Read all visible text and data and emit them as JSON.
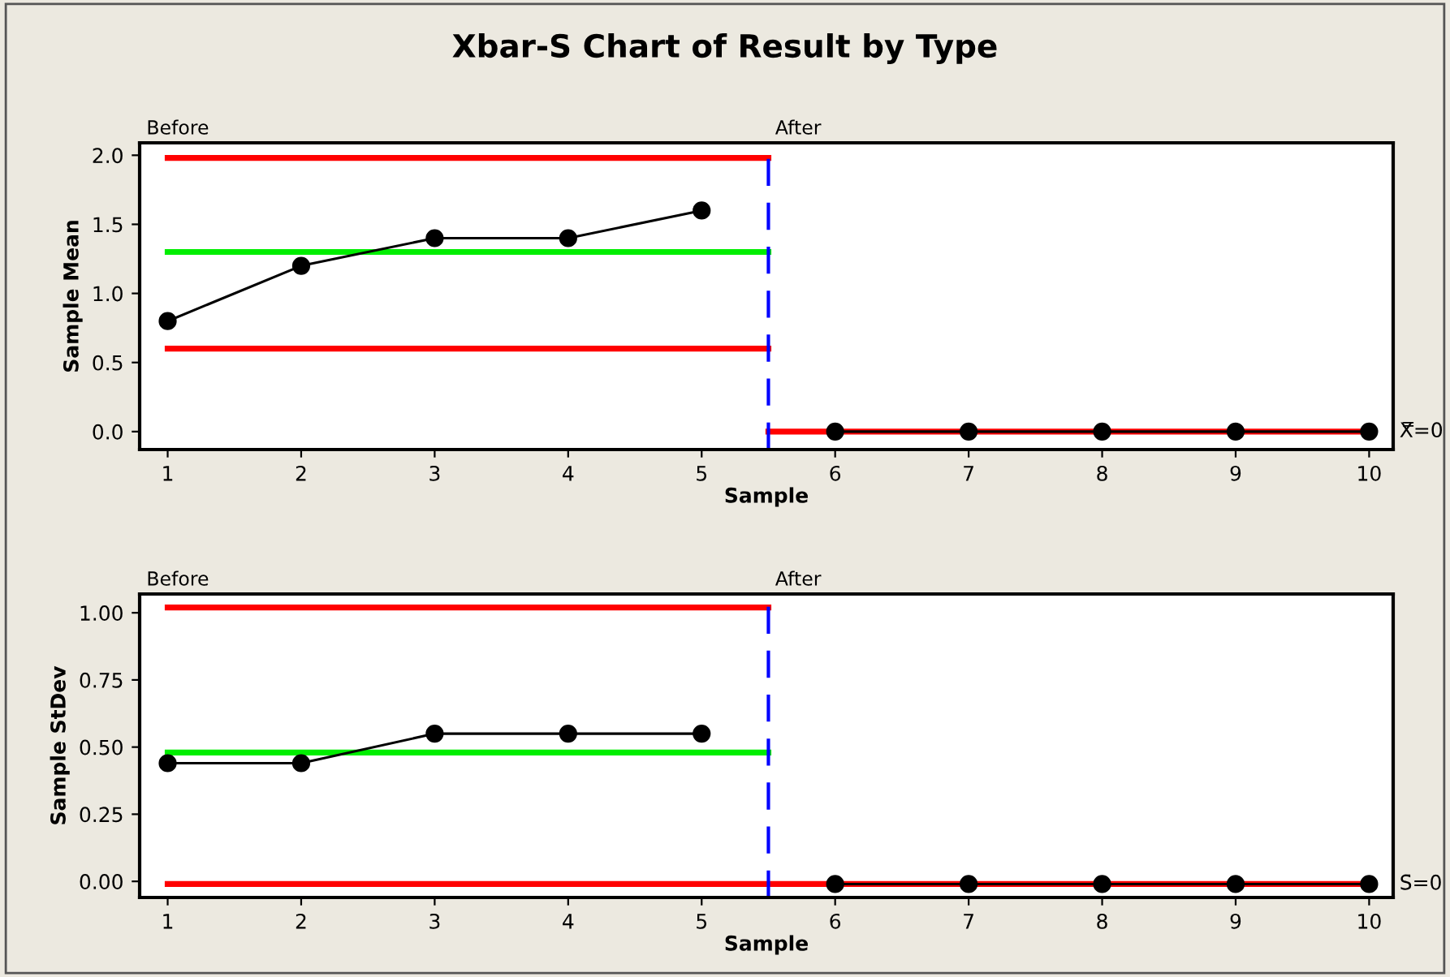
{
  "chart_data": [
    {
      "type": "line",
      "title": "Xbar-S Chart of Result by Type",
      "xlabel": "Sample",
      "ylabel": "Sample Mean",
      "xlim": [
        0.79,
        10.18
      ],
      "xticks": [
        1,
        2,
        3,
        4,
        5,
        6,
        7,
        8,
        9,
        10
      ],
      "ylim": [
        -0.13,
        2.09
      ],
      "yticks": [
        {
          "value": 0,
          "label": "0.0"
        },
        {
          "value": 0.5,
          "label": "0.5"
        },
        {
          "value": 1,
          "label": "1.0"
        },
        {
          "value": 1.5,
          "label": "1.5"
        },
        {
          "value": 2,
          "label": "2.0"
        }
      ],
      "grid": false,
      "series": [
        {
          "color": "#ff0000",
          "marker": "none",
          "x": [
            1,
            5.5
          ],
          "values": [
            1.98,
            1.98
          ]
        },
        {
          "color": "#00ee00",
          "marker": "none",
          "x": [
            1,
            5.5
          ],
          "values": [
            1.3,
            1.3
          ]
        },
        {
          "color": "#ff0000",
          "marker": "none",
          "x": [
            1,
            5.5
          ],
          "values": [
            0.6,
            0.6
          ]
        },
        {
          "color": "#ff0000",
          "marker": "none",
          "x": [
            5.5,
            10
          ],
          "values": [
            0,
            0
          ]
        },
        {
          "color": "#000000",
          "marker": "circle",
          "x": [
            1,
            2,
            3,
            4,
            5,
            5.5,
            6,
            7,
            8,
            9,
            10
          ],
          "values": [
            0.8,
            1.2,
            1.4,
            1.4,
            1.6,
            null,
            0,
            0,
            0,
            0,
            0
          ]
        }
      ],
      "ref_lines": [
        {
          "axis": "x",
          "value": 5.5,
          "color": "#0000ff",
          "line_style": "dashed"
        }
      ],
      "annotations": [
        "Before",
        "After",
        "X̿=0"
      ]
    },
    {
      "type": "line",
      "xlabel": "Sample",
      "ylabel": "Sample StDev",
      "xlim": [
        0.79,
        10.18
      ],
      "xticks": [
        1,
        2,
        3,
        4,
        5,
        6,
        7,
        8,
        9,
        10
      ],
      "ylim": [
        -0.06,
        1.07
      ],
      "yticks": [
        {
          "value": 0,
          "label": "0.00"
        },
        {
          "value": 0.25,
          "label": "0.25"
        },
        {
          "value": 0.5,
          "label": "0.50"
        },
        {
          "value": 0.75,
          "label": "0.75"
        },
        {
          "value": 1,
          "label": "1.00"
        }
      ],
      "grid": false,
      "series": [
        {
          "color": "#ff0000",
          "marker": "none",
          "x": [
            1,
            5.5
          ],
          "values": [
            1.02,
            1.02
          ]
        },
        {
          "color": "#00ee00",
          "marker": "none",
          "x": [
            1,
            5.5
          ],
          "values": [
            0.48,
            0.48
          ]
        },
        {
          "color": "#ff0000",
          "marker": "none",
          "x": [
            1,
            5.5,
            10
          ],
          "values": [
            -0.01,
            -0.01,
            -0.01
          ]
        },
        {
          "color": "#000000",
          "marker": "circle",
          "x": [
            1,
            2,
            3,
            4,
            5,
            5.5,
            6,
            7,
            8,
            9,
            10
          ],
          "values": [
            0.44,
            0.44,
            0.55,
            0.55,
            0.55,
            null,
            -0.01,
            -0.01,
            -0.01,
            -0.01,
            -0.01
          ]
        }
      ],
      "ref_lines": [
        {
          "axis": "x",
          "value": 5.5,
          "color": "#0000ff",
          "line_style": "dashed"
        }
      ],
      "annotations": [
        "Before",
        "After",
        "S̄=0"
      ]
    }
  ]
}
